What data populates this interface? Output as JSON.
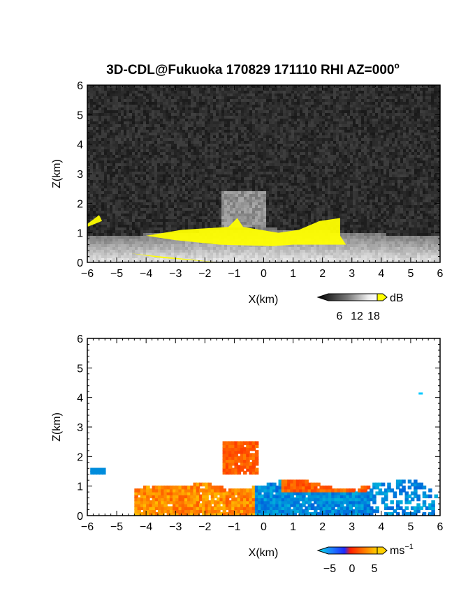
{
  "title": "3D-CDL@Fukuoka 170829 171110 RHI AZ=000",
  "title_superscript": "o",
  "colors": {
    "background_noise": "#222222",
    "snr_highlight": "#ffff00",
    "vel_neg": "#1e5aff",
    "vel_pos": "#ff3c00"
  },
  "chart_data": [
    {
      "name": "snr-panel",
      "type": "heatmap",
      "xlabel": "X(km)",
      "ylabel": "Z(km)",
      "xlim": [
        -6,
        6
      ],
      "ylim": [
        0,
        6
      ],
      "xticks": [
        "-6",
        "-5",
        "-4",
        "-3",
        "-2",
        "-1",
        "0",
        "1",
        "2",
        "3",
        "4",
        "5",
        "6"
      ],
      "yticks": [
        "0",
        "1",
        "2",
        "3",
        "4",
        "5",
        "6"
      ],
      "colorbar": {
        "unit": "dB",
        "ticks": [
          "6",
          "12",
          "18"
        ],
        "colormap": "grayscale-to-yellow"
      }
    },
    {
      "name": "velocity-panel",
      "type": "heatmap",
      "xlabel": "X(km)",
      "ylabel": "Z(km)",
      "xlim": [
        -6,
        6
      ],
      "ylim": [
        0,
        6
      ],
      "xticks": [
        "-6",
        "-5",
        "-4",
        "-3",
        "-2",
        "-1",
        "0",
        "1",
        "2",
        "3",
        "4",
        "5",
        "6"
      ],
      "yticks": [
        "0",
        "1",
        "2",
        "3",
        "4",
        "5",
        "6"
      ],
      "colorbar": {
        "unit": "ms",
        "unit_superscript": "−1",
        "ticks": [
          "−5",
          "0",
          "5"
        ],
        "colormap": "cyan-blue-red-yellow"
      }
    }
  ]
}
